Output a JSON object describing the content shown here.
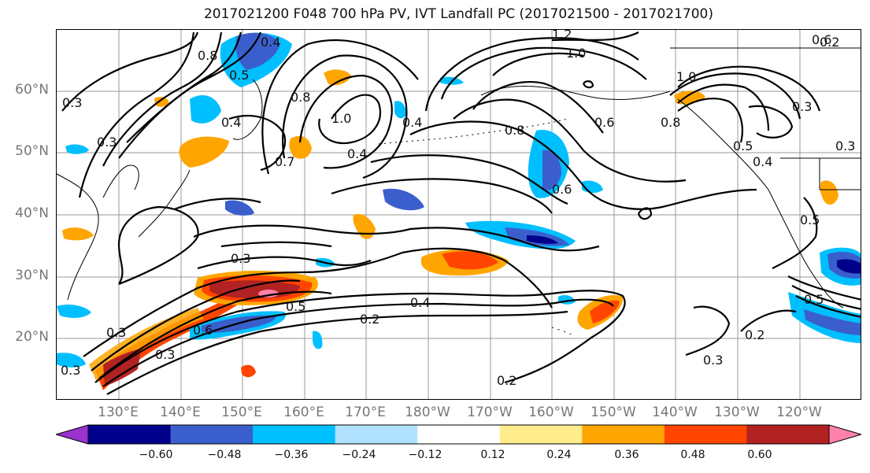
{
  "title": "2017021200 F048 700 hPa PV, IVT Landfall PC (2017021500 - 2017021700)",
  "lat_labels": [
    "60°N",
    "50°N",
    "40°N",
    "30°N",
    "20°N"
  ],
  "lon_labels": [
    "130°E",
    "140°E",
    "150°E",
    "160°E",
    "170°E",
    "180°W",
    "170°W",
    "160°W",
    "150°W",
    "140°W",
    "130°W",
    "120°W"
  ],
  "colorbar": {
    "tick_labels": [
      "−0.60",
      "−0.48",
      "−0.36",
      "−0.24",
      "−0.12",
      "0.12",
      "0.24",
      "0.36",
      "0.48",
      "0.60"
    ],
    "colors": [
      "#9a32cd",
      "#00008b",
      "#3a5fcd",
      "#00bfff",
      "#b0e2ff",
      "#ffffff",
      "#ffec8b",
      "#ffa500",
      "#ff4500",
      "#b22222",
      "#ff82ab"
    ]
  },
  "contour_labels": [
    "0.4",
    "0.8",
    "0.5",
    "1.2",
    "1.0",
    "0.6",
    "0.3",
    "1.0",
    "0.8",
    "0.4",
    "1.0",
    "0.4",
    "0.6",
    "0.8",
    "0.3",
    "0.4",
    "0.5",
    "0.3",
    "0.5",
    "0.3",
    "0.3",
    "0.5",
    "0.4",
    "0.2",
    "0.6",
    "0.3",
    "0.3",
    "0.2",
    "0.3",
    "0.2",
    "0.5",
    "0.2",
    "0.3",
    "0.8",
    "0.4",
    "0.6",
    "0.7"
  ],
  "colors": {
    "title": "#111111",
    "axis_labels": "#777777",
    "gridlines": "#999999",
    "contours": "#000000"
  }
}
